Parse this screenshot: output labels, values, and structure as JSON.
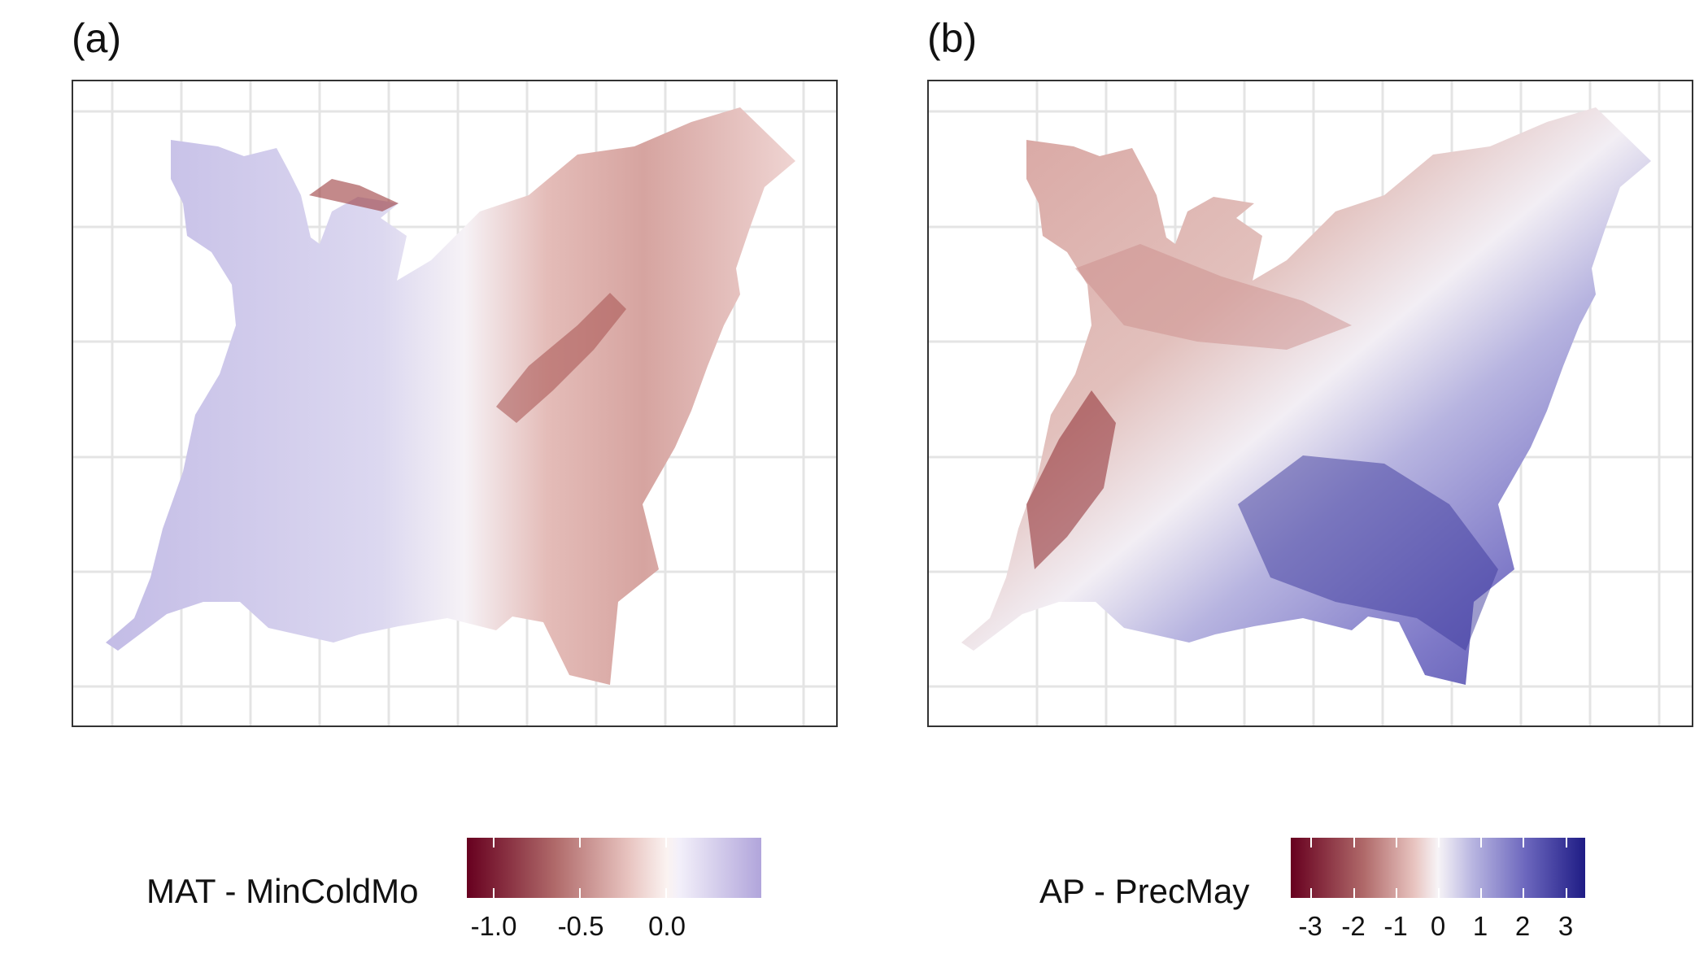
{
  "panels": [
    {
      "tag": "(a)",
      "legend_title": "MAT - MinColdMo",
      "palette": "red-white-purple",
      "colors": [
        "#67001f",
        "#b06a6a",
        "#e8c4c0",
        "#fbf3f1",
        "#f3f0fa",
        "#b1a5db"
      ],
      "scale": {
        "min": -1.15,
        "max": 0.55,
        "ticks": [
          -1.0,
          -0.5,
          0.0
        ],
        "tick_labels": [
          "-1.0",
          "-0.5",
          "0.0"
        ]
      }
    },
    {
      "tag": "(b)",
      "legend_title": "AP - PrecMay",
      "palette": "red-white-blue",
      "colors": [
        "#67001f",
        "#b06a6a",
        "#e8c4c0",
        "#f7f4f7",
        "#b7b4e0",
        "#6b66bd",
        "#1f1c85"
      ],
      "scale": {
        "min": -3.5,
        "max": 3.5,
        "ticks": [
          -3,
          -2,
          -1,
          0,
          1,
          2,
          3
        ],
        "tick_labels": [
          "-3",
          "-2",
          "-1",
          "0",
          "1",
          "2",
          "3"
        ]
      }
    }
  ]
}
